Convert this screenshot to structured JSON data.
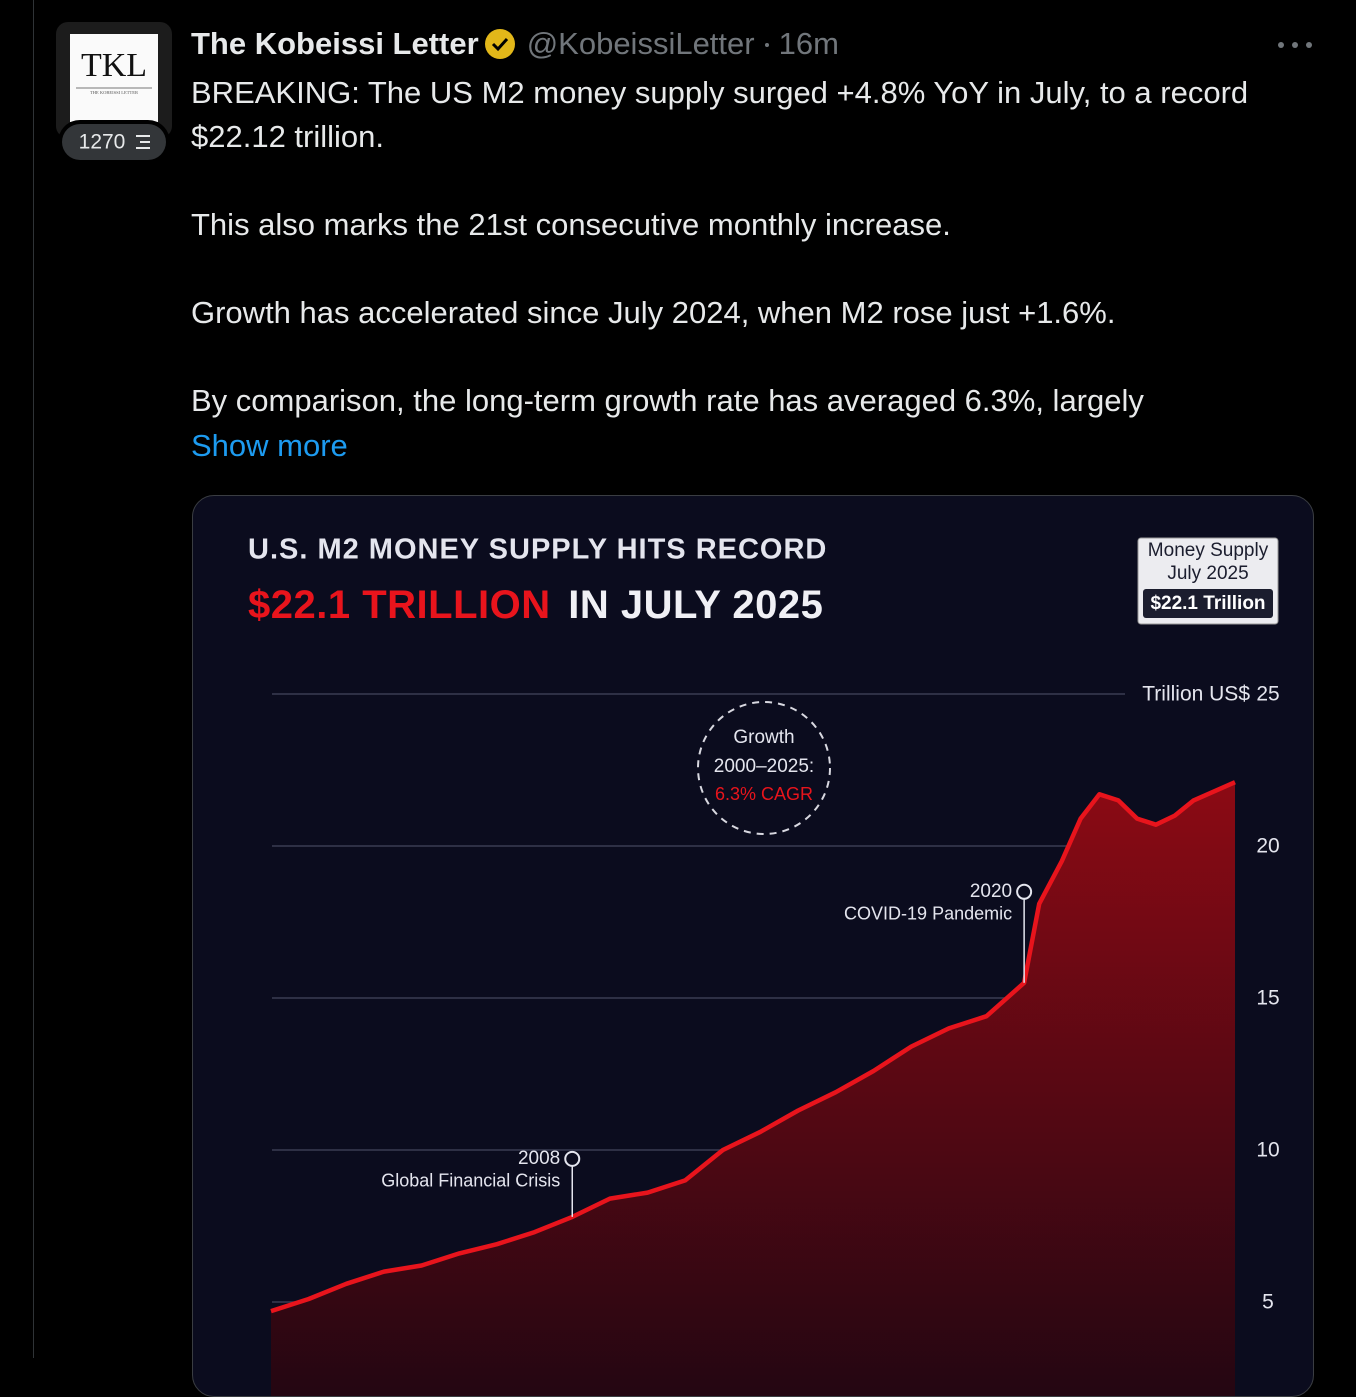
{
  "tweet": {
    "avatar": {
      "text": "TKL",
      "subtext": "THE KOBEISSI LETTER",
      "badge": "1270"
    },
    "author": {
      "name": "The Kobeissi Letter",
      "handle": "@KobeissiLetter",
      "time": "16m"
    },
    "text": [
      "BREAKING: The US M2 money supply surged +4.8% YoY in July, to a record $22.12 trillion.",
      "This also marks the 21st consecutive monthly increase.",
      "Growth has accelerated since July 2024, when M2 rose just +1.6%.",
      "By comparison, the long-term growth rate has averaged 6.3%, largely"
    ],
    "show_more": "Show more"
  },
  "chart_data": {
    "type": "area",
    "title": "U.S. M2 MONEY SUPPLY HITS RECORD",
    "subtitle_highlight": "$22.1 TRILLION",
    "subtitle": "IN JULY 2025",
    "badge": [
      "Money Supply",
      "July 2025",
      "$22.1 Trillion"
    ],
    "y_label": "Trillion US$",
    "color": "#e8141c",
    "x": [
      2000,
      2001,
      2002,
      2003,
      2004,
      2005,
      2006,
      2007,
      2008,
      2009,
      2010,
      2011,
      2012,
      2013,
      2014,
      2015,
      2016,
      2017,
      2018,
      2019,
      2020,
      2020.4,
      2021,
      2021.5,
      2022,
      2022.5,
      2023,
      2023.5,
      2024,
      2024.5,
      2025.6
    ],
    "values": [
      4.7,
      5.1,
      5.6,
      6.0,
      6.2,
      6.6,
      6.9,
      7.3,
      7.8,
      8.4,
      8.6,
      9.0,
      10.0,
      10.6,
      11.3,
      11.9,
      12.6,
      13.4,
      14.0,
      14.4,
      15.5,
      18.1,
      19.5,
      20.9,
      21.7,
      21.5,
      20.9,
      20.7,
      21.0,
      21.5,
      22.1
    ],
    "xlim": [
      2000,
      2025.6
    ],
    "ylim": [
      0,
      25
    ],
    "yticks": [
      5,
      10,
      15,
      20,
      25
    ],
    "grid": true,
    "growth_note": [
      "Growth",
      "2000–2025:",
      "6.3% CAGR"
    ],
    "annotations": [
      {
        "year": 2008,
        "text": "Global Financial Crisis"
      },
      {
        "year": 2020,
        "text": "COVID-19 Pandemic"
      }
    ]
  }
}
